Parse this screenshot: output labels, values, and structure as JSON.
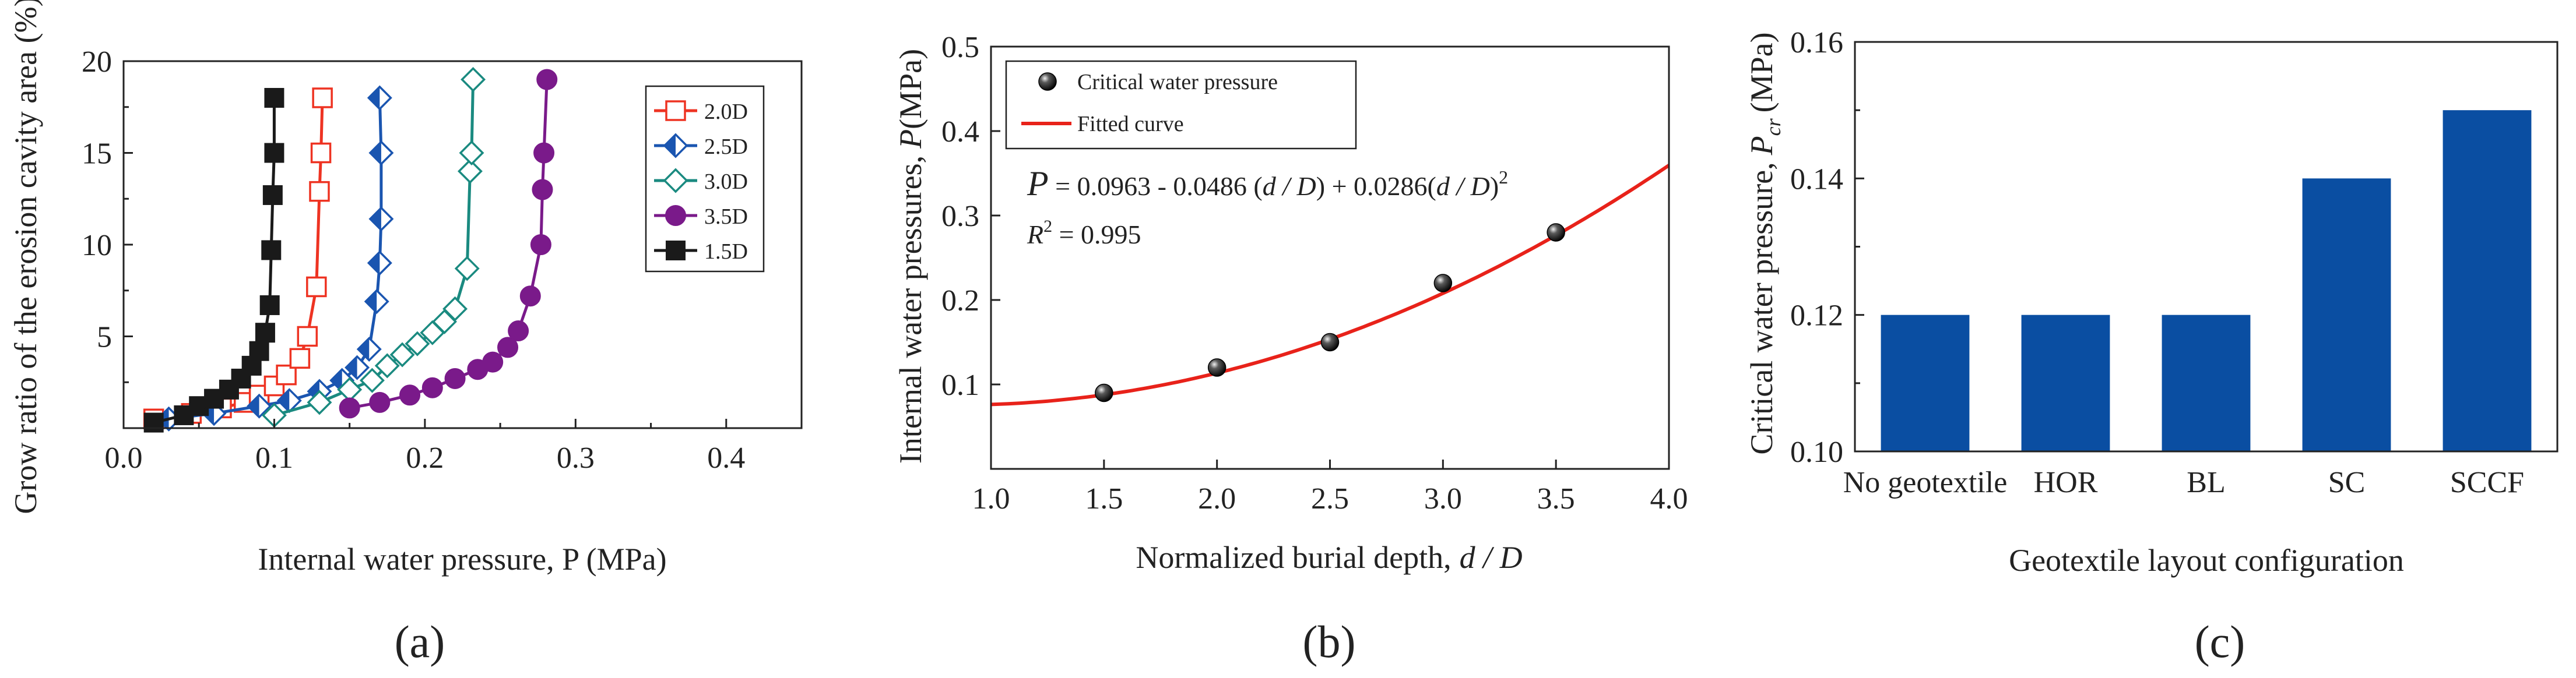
{
  "chart_data": [
    {
      "panel": "(a)",
      "type": "line",
      "caption": "(a)",
      "xlabel": "Internal water pressure, P (MPa)",
      "ylabel": "Grow ratio of the erosion cavity area (%)",
      "xlim": [
        0.0,
        0.45
      ],
      "ylim": [
        0,
        20
      ],
      "xticks": [
        "0.0",
        "0.1",
        "0.2",
        "0.3",
        "0.4"
      ],
      "yticks": [
        "5",
        "10",
        "15",
        "20"
      ],
      "legend_position": "top-right",
      "series": [
        {
          "name": "2.0D",
          "color": "#ee3322",
          "marker": "open-square",
          "points": [
            [
              0.02,
              0.5
            ],
            [
              0.045,
              0.8
            ],
            [
              0.065,
              1.1
            ],
            [
              0.08,
              1.4
            ],
            [
              0.09,
              1.8
            ],
            [
              0.1,
              2.3
            ],
            [
              0.108,
              2.9
            ],
            [
              0.117,
              3.8
            ],
            [
              0.122,
              5.0
            ],
            [
              0.128,
              7.7
            ],
            [
              0.13,
              12.9
            ],
            [
              0.131,
              15.0
            ],
            [
              0.132,
              18.0
            ]
          ]
        },
        {
          "name": "2.5D",
          "color": "#1a55b0",
          "marker": "half-filled-diamond",
          "points": [
            [
              0.03,
              0.5
            ],
            [
              0.06,
              0.8
            ],
            [
              0.09,
              1.2
            ],
            [
              0.11,
              1.5
            ],
            [
              0.13,
              2.0
            ],
            [
              0.145,
              2.6
            ],
            [
              0.155,
              3.3
            ],
            [
              0.163,
              4.3
            ],
            [
              0.168,
              6.9
            ],
            [
              0.17,
              9.0
            ],
            [
              0.171,
              11.4
            ],
            [
              0.171,
              15.0
            ],
            [
              0.17,
              18.0
            ]
          ]
        },
        {
          "name": "3.0D",
          "color": "#1a8a80",
          "marker": "open-diamond",
          "points": [
            [
              0.1,
              0.7
            ],
            [
              0.13,
              1.4
            ],
            [
              0.15,
              2.1
            ],
            [
              0.165,
              2.6
            ],
            [
              0.175,
              3.4
            ],
            [
              0.185,
              4.0
            ],
            [
              0.195,
              4.6
            ],
            [
              0.205,
              5.2
            ],
            [
              0.213,
              5.8
            ],
            [
              0.22,
              6.5
            ],
            [
              0.228,
              8.7
            ],
            [
              0.23,
              14.0
            ],
            [
              0.231,
              15.0
            ],
            [
              0.232,
              19.0
            ]
          ]
        },
        {
          "name": "3.5D",
          "color": "#7a1a8a",
          "marker": "filled-circle",
          "points": [
            [
              0.15,
              1.1
            ],
            [
              0.17,
              1.4
            ],
            [
              0.19,
              1.8
            ],
            [
              0.205,
              2.2
            ],
            [
              0.22,
              2.7
            ],
            [
              0.235,
              3.2
            ],
            [
              0.245,
              3.6
            ],
            [
              0.255,
              4.4
            ],
            [
              0.262,
              5.3
            ],
            [
              0.27,
              7.2
            ],
            [
              0.277,
              10.0
            ],
            [
              0.278,
              13.0
            ],
            [
              0.279,
              15.0
            ],
            [
              0.281,
              19.0
            ]
          ]
        },
        {
          "name": "1.5D",
          "color": "#1a1a1a",
          "marker": "filled-square",
          "points": [
            [
              0.02,
              0.3
            ],
            [
              0.04,
              0.7
            ],
            [
              0.05,
              1.2
            ],
            [
              0.06,
              1.6
            ],
            [
              0.07,
              2.1
            ],
            [
              0.078,
              2.7
            ],
            [
              0.085,
              3.4
            ],
            [
              0.09,
              4.2
            ],
            [
              0.094,
              5.2
            ],
            [
              0.097,
              6.7
            ],
            [
              0.098,
              9.7
            ],
            [
              0.099,
              12.7
            ],
            [
              0.1,
              15.0
            ],
            [
              0.1,
              18.0
            ]
          ]
        }
      ]
    },
    {
      "panel": "(b)",
      "type": "scatter",
      "caption": "(b)",
      "xlabel": "Normalized burial depth,",
      "xlabel_italic": "d / D",
      "ylabel": "Internal water pressures,",
      "ylabel_italic": "P",
      "ylabel_unit": "(MPa)",
      "xlim": [
        1.0,
        4.0
      ],
      "ylim": [
        0.0,
        0.5
      ],
      "xticks": [
        "1.0",
        "1.5",
        "2.0",
        "2.5",
        "3.0",
        "3.5",
        "4.0"
      ],
      "yticks": [
        "0.1",
        "0.2",
        "0.3",
        "0.4",
        "0.5"
      ],
      "legend": [
        {
          "label": "Critical water pressure",
          "marker": "black-sphere"
        },
        {
          "label": "Fitted curve",
          "color": "#e8221a"
        }
      ],
      "points": [
        [
          1.5,
          0.09
        ],
        [
          2.0,
          0.12
        ],
        [
          2.5,
          0.15
        ],
        [
          3.0,
          0.22
        ],
        [
          3.5,
          0.28
        ]
      ],
      "fit": {
        "a": 0.0963,
        "b": -0.0486,
        "c": 0.0286
      },
      "equation": {
        "lhs": "P",
        "rhs_1": " = 0.0963 - 0.0486 (",
        "var_1": "d / D",
        "rhs_2": ") + 0.0286(",
        "var_2": "d / D",
        "rhs_3": ")",
        "sup": "2"
      },
      "r2": {
        "label": "R",
        "sup": "2",
        "value": " = 0.995"
      }
    },
    {
      "panel": "(c)",
      "type": "bar",
      "caption": "(c)",
      "xlabel": "Geotextile layout configuration",
      "ylabel": "Critical water pressure,",
      "ylabel_italic": "P",
      "ylabel_sub": "cr",
      "ylabel_unit": "(MPa)",
      "categories": [
        "No geotextile",
        "HOR",
        "BL",
        "SC",
        "SCCF"
      ],
      "values": [
        0.12,
        0.12,
        0.12,
        0.14,
        0.15
      ],
      "ylim": [
        0.1,
        0.16
      ],
      "yticks": [
        "0.10",
        "0.12",
        "0.14",
        "0.16"
      ],
      "bar_color": "#0a4ea2"
    }
  ]
}
